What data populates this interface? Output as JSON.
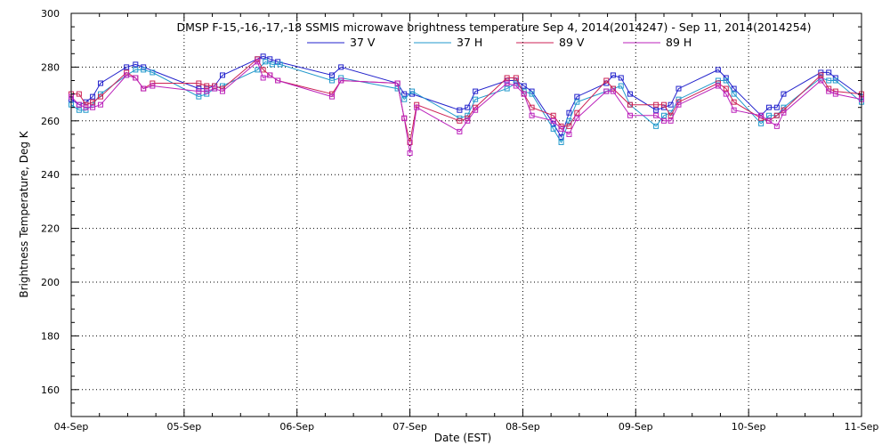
{
  "chart_data": {
    "type": "line",
    "title": "DMSP F-15,-16,-17,-18 SSMIS microwave brightness temperature Sep  4, 2014(2014247) - Sep 11, 2014(2014254)",
    "xlabel": "Date (EST)",
    "ylabel": "Brightness Temperature, Deg K",
    "ylim": [
      150,
      300
    ],
    "xlim": [
      0,
      7
    ],
    "yticks": [
      "160",
      "180",
      "200",
      "220",
      "240",
      "260",
      "280",
      "300"
    ],
    "xticks": [
      "04-Sep",
      "05-Sep",
      "06-Sep",
      "07-Sep",
      "08-Sep",
      "09-Sep",
      "10-Sep",
      "11-Sep"
    ],
    "grid": true,
    "legend_position": "top-center",
    "series": [
      {
        "name": "37 V",
        "color": "#2222cc",
        "points": [
          [
            0.0,
            268
          ],
          [
            0.07,
            266
          ],
          [
            0.13,
            267
          ],
          [
            0.19,
            269
          ],
          [
            0.26,
            274
          ],
          [
            0.49,
            280
          ],
          [
            0.57,
            281
          ],
          [
            0.64,
            280
          ],
          [
            1.13,
            272
          ],
          [
            1.2,
            272
          ],
          [
            1.27,
            273
          ],
          [
            1.34,
            277
          ],
          [
            1.65,
            283
          ],
          [
            1.7,
            284
          ],
          [
            1.76,
            283
          ],
          [
            1.83,
            282
          ],
          [
            2.31,
            277
          ],
          [
            2.39,
            280
          ],
          [
            2.89,
            274
          ],
          [
            2.95,
            270
          ],
          [
            3.02,
            270
          ],
          [
            3.44,
            264
          ],
          [
            3.51,
            265
          ],
          [
            3.58,
            271
          ],
          [
            3.86,
            275
          ],
          [
            3.94,
            275
          ],
          [
            4.01,
            273
          ],
          [
            4.08,
            271
          ],
          [
            4.27,
            259
          ],
          [
            4.34,
            254
          ],
          [
            4.41,
            263
          ],
          [
            4.48,
            269
          ],
          [
            4.74,
            274
          ],
          [
            4.8,
            277
          ],
          [
            4.87,
            276
          ],
          [
            4.95,
            270
          ],
          [
            5.18,
            264
          ],
          [
            5.25,
            265
          ],
          [
            5.31,
            266
          ],
          [
            5.38,
            272
          ],
          [
            5.73,
            279
          ],
          [
            5.8,
            276
          ],
          [
            5.87,
            272
          ],
          [
            6.11,
            262
          ],
          [
            6.18,
            265
          ],
          [
            6.25,
            265
          ],
          [
            6.31,
            270
          ],
          [
            6.64,
            278
          ],
          [
            6.71,
            278
          ],
          [
            6.77,
            276
          ],
          [
            7.0,
            269
          ]
        ]
      },
      {
        "name": "37 H",
        "color": "#2299cc",
        "points": [
          [
            0.0,
            266
          ],
          [
            0.07,
            264
          ],
          [
            0.13,
            264
          ],
          [
            0.19,
            266
          ],
          [
            0.26,
            270
          ],
          [
            0.49,
            277
          ],
          [
            0.57,
            279
          ],
          [
            0.64,
            279
          ],
          [
            0.72,
            278
          ],
          [
            1.13,
            269
          ],
          [
            1.2,
            270
          ],
          [
            1.27,
            272
          ],
          [
            1.34,
            273
          ],
          [
            1.65,
            279
          ],
          [
            1.72,
            282
          ],
          [
            1.78,
            281
          ],
          [
            1.85,
            281
          ],
          [
            2.31,
            275
          ],
          [
            2.39,
            276
          ],
          [
            2.89,
            272
          ],
          [
            2.95,
            268
          ],
          [
            3.02,
            271
          ],
          [
            3.44,
            261
          ],
          [
            3.51,
            262
          ],
          [
            3.58,
            268
          ],
          [
            3.86,
            272
          ],
          [
            3.94,
            274
          ],
          [
            4.01,
            271
          ],
          [
            4.08,
            270
          ],
          [
            4.27,
            257
          ],
          [
            4.34,
            252
          ],
          [
            4.41,
            260
          ],
          [
            4.48,
            267
          ],
          [
            4.74,
            271
          ],
          [
            4.8,
            272
          ],
          [
            4.87,
            273
          ],
          [
            4.95,
            266
          ],
          [
            5.18,
            258
          ],
          [
            5.25,
            262
          ],
          [
            5.31,
            263
          ],
          [
            5.38,
            268
          ],
          [
            5.73,
            275
          ],
          [
            5.8,
            275
          ],
          [
            5.87,
            270
          ],
          [
            6.11,
            259
          ],
          [
            6.18,
            262
          ],
          [
            6.25,
            262
          ],
          [
            6.31,
            265
          ],
          [
            6.64,
            276
          ],
          [
            6.71,
            275
          ],
          [
            6.77,
            275
          ],
          [
            7.0,
            267
          ]
        ]
      },
      {
        "name": "89 V",
        "color": "#cc2255",
        "points": [
          [
            0.0,
            270
          ],
          [
            0.07,
            270
          ],
          [
            0.13,
            266
          ],
          [
            0.19,
            267
          ],
          [
            0.26,
            269
          ],
          [
            0.49,
            278
          ],
          [
            0.57,
            276
          ],
          [
            0.64,
            272
          ],
          [
            0.72,
            274
          ],
          [
            1.13,
            274
          ],
          [
            1.2,
            273
          ],
          [
            1.27,
            273
          ],
          [
            1.34,
            272
          ],
          [
            1.65,
            283
          ],
          [
            1.7,
            279
          ],
          [
            1.76,
            277
          ],
          [
            1.83,
            275
          ],
          [
            2.31,
            270
          ],
          [
            2.39,
            275
          ],
          [
            2.89,
            274
          ],
          [
            2.95,
            261
          ],
          [
            3.0,
            252
          ],
          [
            3.06,
            266
          ],
          [
            3.44,
            260
          ],
          [
            3.51,
            261
          ],
          [
            3.58,
            265
          ],
          [
            3.86,
            276
          ],
          [
            3.94,
            276
          ],
          [
            4.01,
            270
          ],
          [
            4.08,
            265
          ],
          [
            4.27,
            262
          ],
          [
            4.34,
            258
          ],
          [
            4.41,
            258
          ],
          [
            4.48,
            263
          ],
          [
            4.74,
            275
          ],
          [
            4.8,
            272
          ],
          [
            4.95,
            266
          ],
          [
            5.18,
            266
          ],
          [
            5.25,
            266
          ],
          [
            5.31,
            262
          ],
          [
            5.38,
            267
          ],
          [
            5.73,
            274
          ],
          [
            5.8,
            272
          ],
          [
            5.87,
            267
          ],
          [
            6.11,
            261
          ],
          [
            6.18,
            260
          ],
          [
            6.25,
            262
          ],
          [
            6.31,
            264
          ],
          [
            6.64,
            277
          ],
          [
            6.71,
            272
          ],
          [
            6.77,
            271
          ],
          [
            7.0,
            270
          ]
        ]
      },
      {
        "name": "89 H",
        "color": "#bb22bb",
        "points": [
          [
            0.0,
            269
          ],
          [
            0.07,
            266
          ],
          [
            0.13,
            265
          ],
          [
            0.19,
            265
          ],
          [
            0.26,
            266
          ],
          [
            0.49,
            277
          ],
          [
            0.57,
            276
          ],
          [
            0.64,
            272
          ],
          [
            0.72,
            273
          ],
          [
            1.13,
            271
          ],
          [
            1.2,
            271
          ],
          [
            1.27,
            272
          ],
          [
            1.34,
            271
          ],
          [
            1.65,
            282
          ],
          [
            1.7,
            276
          ],
          [
            1.76,
            277
          ],
          [
            1.83,
            275
          ],
          [
            2.31,
            269
          ],
          [
            2.39,
            275
          ],
          [
            2.89,
            274
          ],
          [
            2.95,
            261
          ],
          [
            3.0,
            248
          ],
          [
            3.06,
            265
          ],
          [
            3.44,
            256
          ],
          [
            3.51,
            260
          ],
          [
            3.58,
            264
          ],
          [
            3.86,
            274
          ],
          [
            3.94,
            273
          ],
          [
            4.01,
            270
          ],
          [
            4.08,
            262
          ],
          [
            4.27,
            260
          ],
          [
            4.34,
            257
          ],
          [
            4.41,
            255
          ],
          [
            4.48,
            261
          ],
          [
            4.74,
            271
          ],
          [
            4.8,
            271
          ],
          [
            4.95,
            262
          ],
          [
            5.18,
            262
          ],
          [
            5.25,
            260
          ],
          [
            5.31,
            260
          ],
          [
            5.38,
            266
          ],
          [
            5.73,
            273
          ],
          [
            5.8,
            270
          ],
          [
            5.87,
            264
          ],
          [
            6.11,
            262
          ],
          [
            6.18,
            260
          ],
          [
            6.25,
            258
          ],
          [
            6.31,
            263
          ],
          [
            6.64,
            275
          ],
          [
            6.71,
            271
          ],
          [
            6.77,
            270
          ],
          [
            7.0,
            268
          ]
        ]
      }
    ]
  }
}
